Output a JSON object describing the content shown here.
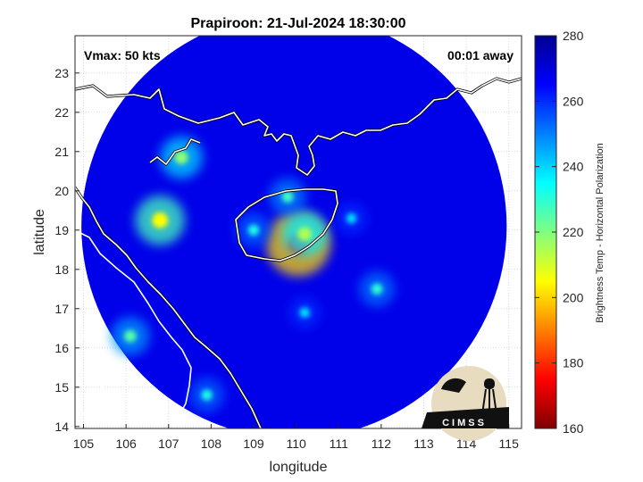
{
  "chart_data": {
    "type": "heatmap",
    "title": "Prapiroon: 21-Jul-2024 18:30:00",
    "xlabel": "longitude",
    "ylabel": "latitude",
    "xlim": [
      104.8,
      115.3
    ],
    "ylim": [
      13.95,
      23.95
    ],
    "x_ticks": [
      105,
      106,
      107,
      108,
      109,
      110,
      111,
      112,
      113,
      114,
      115
    ],
    "y_ticks": [
      14,
      15,
      16,
      17,
      18,
      19,
      20,
      21,
      22,
      23
    ],
    "grid": true,
    "annotations": {
      "vmax": "Vmax: 50 kts",
      "away": "00:01 away"
    },
    "colorbar": {
      "label": "Brightness Temp - Horizontal Polarization",
      "range": [
        160,
        280
      ],
      "ticks": [
        160,
        180,
        200,
        220,
        240,
        260,
        280
      ],
      "colormap": [
        "#7f0000",
        "#ff0000",
        "#ff8000",
        "#ffff00",
        "#80ff80",
        "#00ffff",
        "#0080ff",
        "#0000ff",
        "#00008f"
      ]
    },
    "swath": {
      "center": [
        109.95,
        19.1
      ],
      "radius_deg": 5.0,
      "background_value": 268
    },
    "features": [
      {
        "label": "eye",
        "lon": 110.05,
        "lat": 18.65,
        "value": 178
      },
      {
        "label": "inner ring",
        "lon": 110.2,
        "lat": 18.9,
        "value": 215
      },
      {
        "label": "north band",
        "lon": 109.8,
        "lat": 19.85,
        "value": 228
      },
      {
        "label": "west band",
        "lon": 109.0,
        "lat": 19.0,
        "value": 232
      },
      {
        "label": "east band",
        "lon": 111.3,
        "lat": 19.3,
        "value": 238
      },
      {
        "label": "gulf cell",
        "lon": 107.3,
        "lat": 20.85,
        "value": 218
      },
      {
        "label": "gulf cell 2",
        "lon": 106.8,
        "lat": 19.25,
        "value": 205
      },
      {
        "label": "SE band",
        "lon": 111.9,
        "lat": 17.5,
        "value": 230
      },
      {
        "label": "S band",
        "lon": 110.2,
        "lat": 16.9,
        "value": 238
      },
      {
        "label": "SW cell",
        "lon": 106.1,
        "lat": 16.3,
        "value": 225
      },
      {
        "label": "S coast cell",
        "lon": 107.9,
        "lat": 14.8,
        "value": 232
      }
    ],
    "logo": "CIMSS"
  }
}
